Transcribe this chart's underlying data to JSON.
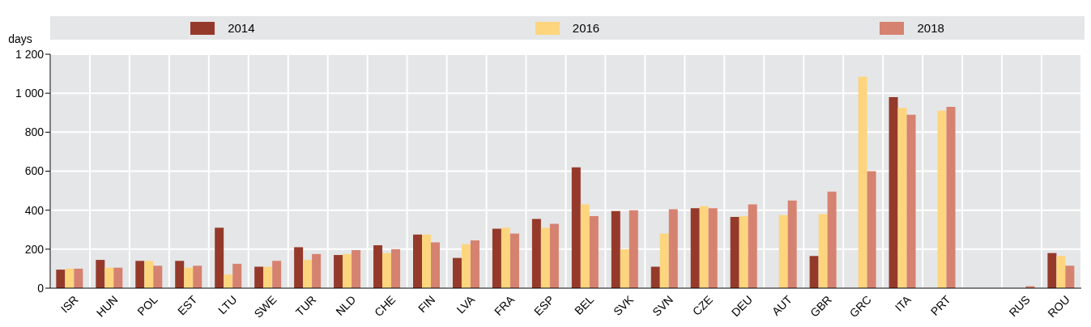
{
  "chart_data": {
    "type": "bar",
    "ylabel": "days",
    "categories": [
      "ISR",
      "HUN",
      "POL",
      "EST",
      "LTU",
      "SWE",
      "TUR",
      "NLD",
      "CHE",
      "FIN",
      "LVA",
      "FRA",
      "ESP",
      "BEL",
      "SVK",
      "SVN",
      "CZE",
      "DEU",
      "AUT",
      "GBR",
      "GRC",
      "ITA",
      "PRT",
      null,
      "RUS",
      "ROU"
    ],
    "series": [
      {
        "name": "2014",
        "color": "#953a2b",
        "values": [
          95,
          145,
          140,
          140,
          310,
          110,
          210,
          170,
          220,
          275,
          155,
          305,
          355,
          620,
          395,
          110,
          410,
          365,
          null,
          165,
          null,
          980,
          null,
          null,
          null,
          180
        ]
      },
      {
        "name": "2016",
        "color": "#fdd57e",
        "values": [
          100,
          105,
          140,
          105,
          70,
          110,
          145,
          175,
          180,
          275,
          225,
          310,
          310,
          430,
          200,
          280,
          420,
          370,
          375,
          380,
          1085,
          925,
          910,
          null,
          null,
          165
        ]
      },
      {
        "name": "2018",
        "color": "#d68270",
        "values": [
          100,
          105,
          115,
          115,
          125,
          140,
          175,
          195,
          200,
          235,
          245,
          280,
          330,
          370,
          400,
          405,
          410,
          430,
          450,
          495,
          600,
          890,
          930,
          null,
          10,
          115
        ]
      }
    ],
    "ylim": [
      0,
      1200
    ],
    "yticks": [
      0,
      200,
      400,
      600,
      800,
      {
        "value": 1000,
        "label": "1 000"
      },
      {
        "value": 1200,
        "label": "1 200"
      }
    ],
    "grid": true,
    "legend": "top"
  }
}
